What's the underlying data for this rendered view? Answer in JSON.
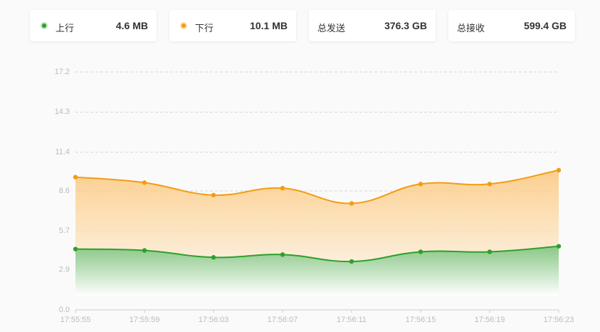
{
  "stats": [
    {
      "value": "4.6 MB"
    },
    {
      "value": "10.1 MB"
    },
    {
      "label": "总发送",
      "value": "376.3 GB"
    },
    {
      "label": "总接收",
      "value": "599.4 GB"
    }
  ],
  "chart_data": {
    "type": "line",
    "categories": [
      "17:55:55",
      "17:55:59",
      "17:56:03",
      "17:56:07",
      "17:56:11",
      "17:56:15",
      "17:56:19",
      "17:56:23"
    ],
    "series": [
      {
        "name": "上行",
        "color": "#2ca02c",
        "values": [
          4.4,
          4.3,
          3.8,
          4.0,
          3.5,
          4.2,
          4.2,
          4.6
        ]
      },
      {
        "name": "下行",
        "color": "#f39c12",
        "values": [
          9.6,
          9.2,
          8.3,
          8.8,
          7.7,
          9.1,
          9.1,
          10.1
        ]
      }
    ],
    "ylim": [
      0,
      17.2
    ],
    "yticks": [
      {
        "value": 0,
        "label": "0.0"
      },
      2.9,
      5.7,
      8.6,
      11.4,
      14.3,
      17.2
    ],
    "grid": true
  }
}
